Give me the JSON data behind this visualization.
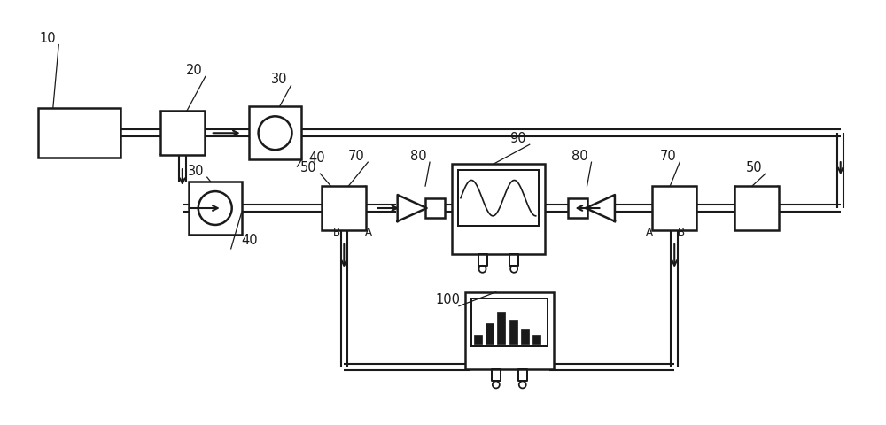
{
  "bg_color": "#ffffff",
  "line_color": "#1a1a1a",
  "lw": 1.8,
  "fig_w": 10.0,
  "fig_h": 4.81,
  "xlim": [
    0,
    10
  ],
  "ylim": [
    0,
    4.81
  ]
}
